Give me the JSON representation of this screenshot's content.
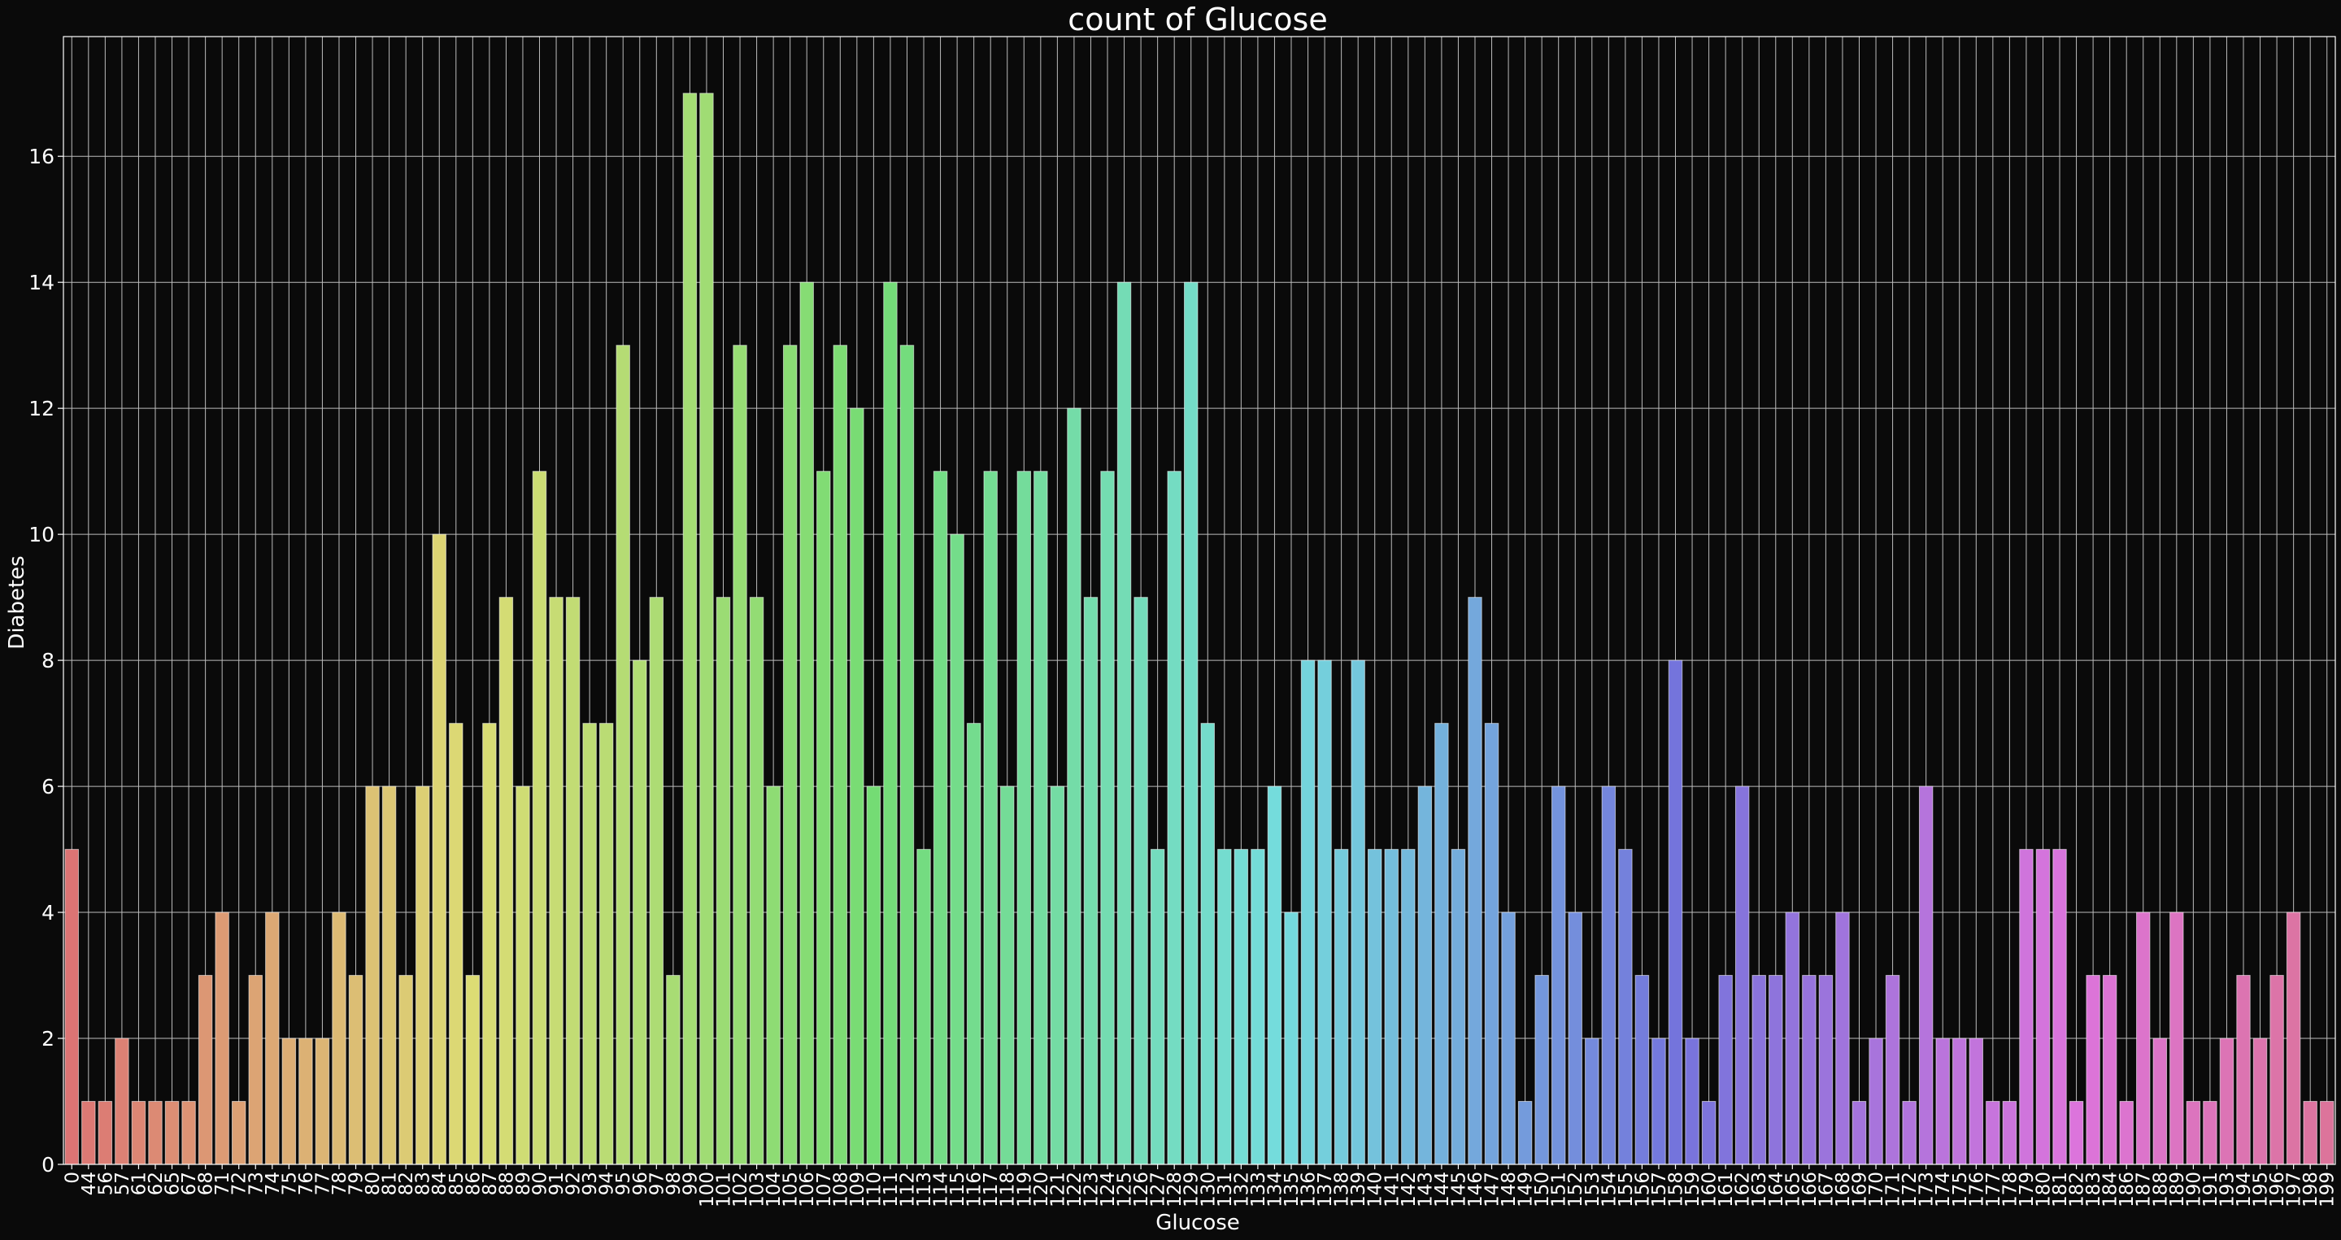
{
  "chart_data": {
    "type": "bar",
    "title": "count of Glucose",
    "xlabel": "Glucose",
    "ylabel": "Diabetes",
    "ylim": [
      0,
      17.9
    ],
    "yticks": [
      0,
      2,
      4,
      6,
      8,
      10,
      12,
      14,
      16
    ],
    "grid": true,
    "categories": [
      "0",
      "44",
      "56",
      "57",
      "61",
      "62",
      "65",
      "67",
      "68",
      "71",
      "72",
      "73",
      "74",
      "75",
      "76",
      "77",
      "78",
      "79",
      "80",
      "81",
      "82",
      "83",
      "84",
      "85",
      "86",
      "87",
      "88",
      "89",
      "90",
      "91",
      "92",
      "93",
      "94",
      "95",
      "96",
      "97",
      "98",
      "99",
      "100",
      "101",
      "102",
      "103",
      "104",
      "105",
      "106",
      "107",
      "108",
      "109",
      "110",
      "111",
      "112",
      "113",
      "114",
      "115",
      "116",
      "117",
      "118",
      "119",
      "120",
      "121",
      "122",
      "123",
      "124",
      "125",
      "126",
      "127",
      "128",
      "129",
      "130",
      "131",
      "132",
      "133",
      "134",
      "135",
      "136",
      "137",
      "138",
      "139",
      "140",
      "141",
      "142",
      "143",
      "144",
      "145",
      "146",
      "147",
      "148",
      "149",
      "150",
      "151",
      "152",
      "153",
      "154",
      "155",
      "156",
      "157",
      "158",
      "159",
      "160",
      "161",
      "162",
      "163",
      "164",
      "165",
      "166",
      "167",
      "168",
      "169",
      "170",
      "171",
      "172",
      "173",
      "174",
      "175",
      "176",
      "177",
      "178",
      "179",
      "180",
      "181",
      "182",
      "183",
      "184",
      "186",
      "187",
      "188",
      "189",
      "190",
      "191",
      "193",
      "194",
      "195",
      "196",
      "197",
      "198",
      "199"
    ],
    "values": [
      5,
      1,
      1,
      2,
      1,
      1,
      1,
      1,
      3,
      4,
      1,
      3,
      4,
      2,
      2,
      2,
      4,
      3,
      6,
      6,
      3,
      6,
      10,
      7,
      3,
      7,
      9,
      6,
      11,
      9,
      9,
      7,
      7,
      13,
      8,
      9,
      3,
      17,
      17,
      9,
      13,
      9,
      6,
      13,
      14,
      11,
      13,
      12,
      6,
      14,
      13,
      5,
      11,
      10,
      7,
      11,
      6,
      11,
      11,
      6,
      12,
      9,
      11,
      14,
      9,
      5,
      11,
      14,
      7,
      5,
      5,
      5,
      6,
      4,
      8,
      8,
      5,
      8,
      5,
      5,
      5,
      6,
      7,
      5,
      9,
      7,
      4,
      1,
      3,
      6,
      4,
      2,
      6,
      5,
      3,
      2,
      8,
      2,
      1,
      3,
      6,
      3,
      3,
      4,
      3,
      3,
      4,
      1,
      2,
      3,
      1,
      6,
      2,
      2,
      2,
      1,
      1,
      5,
      5,
      5,
      1,
      3,
      3,
      1,
      4,
      2,
      4,
      1,
      1,
      2,
      3,
      2,
      3,
      4,
      1,
      1
    ]
  }
}
